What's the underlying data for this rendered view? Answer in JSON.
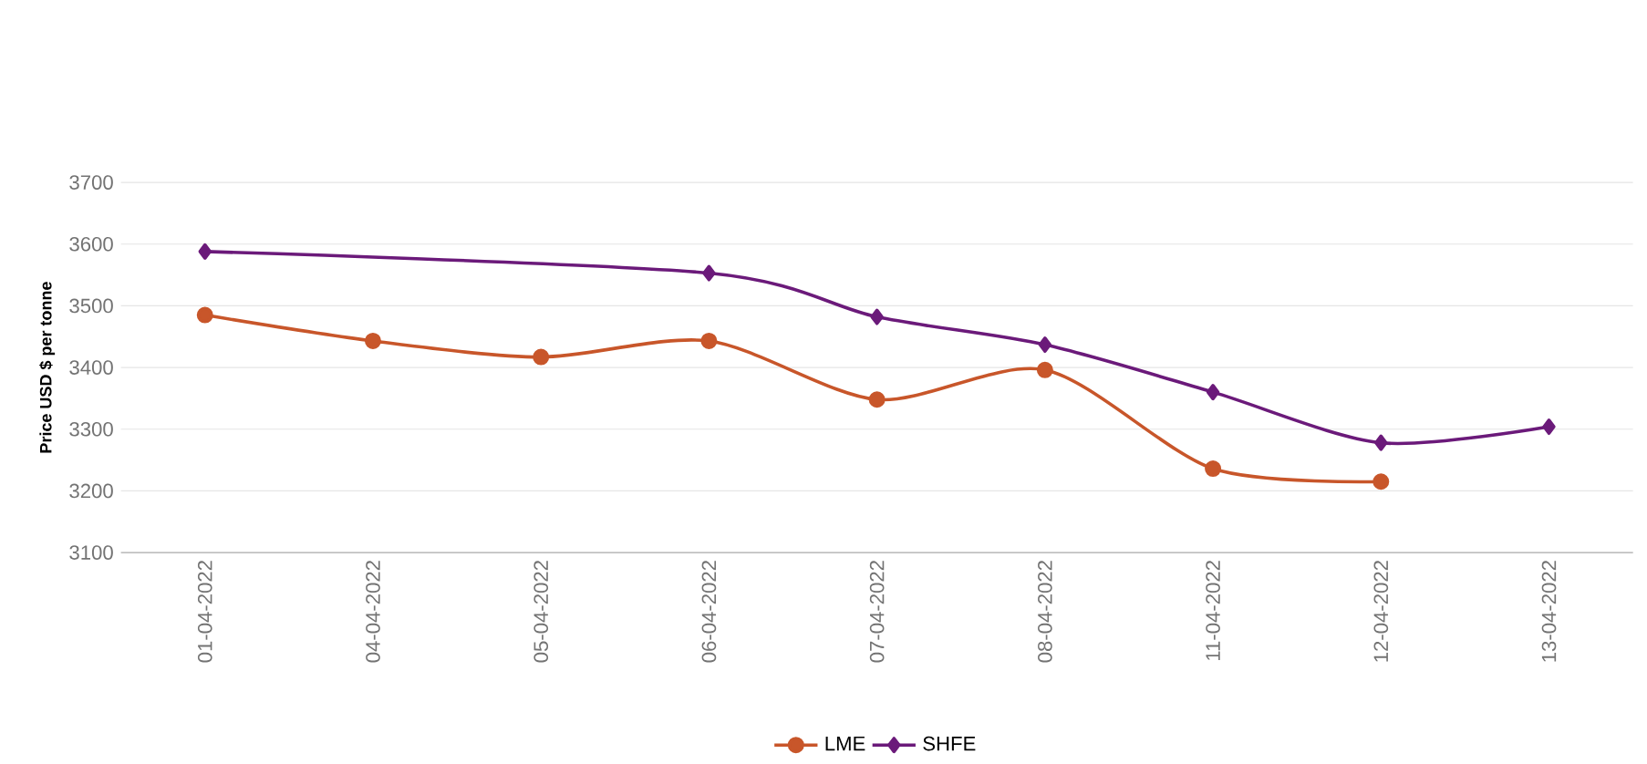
{
  "chart_data": {
    "type": "line",
    "ylabel": "Price USD $ per tonne",
    "categories": [
      "01-04-2022",
      "04-04-2022",
      "05-04-2022",
      "06-04-2022",
      "07-04-2022",
      "08-04-2022",
      "11-04-2022",
      "12-04-2022",
      "13-04-2022"
    ],
    "series": [
      {
        "name": "LME",
        "color": "#c8562a",
        "marker": "circle",
        "values": [
          3485,
          3443,
          3417,
          3443,
          3348,
          3396,
          3236,
          3215,
          null
        ]
      },
      {
        "name": "SHFE",
        "color": "#6b1a7a",
        "marker": "diamond",
        "values": [
          3588,
          null,
          null,
          3553,
          3482,
          3437,
          3360,
          3278,
          3304
        ]
      }
    ],
    "ylim": [
      3100,
      3700
    ],
    "yticks": [
      3100,
      3200,
      3300,
      3400,
      3500,
      3600,
      3700
    ],
    "grid": "y",
    "legend": "bottom"
  }
}
